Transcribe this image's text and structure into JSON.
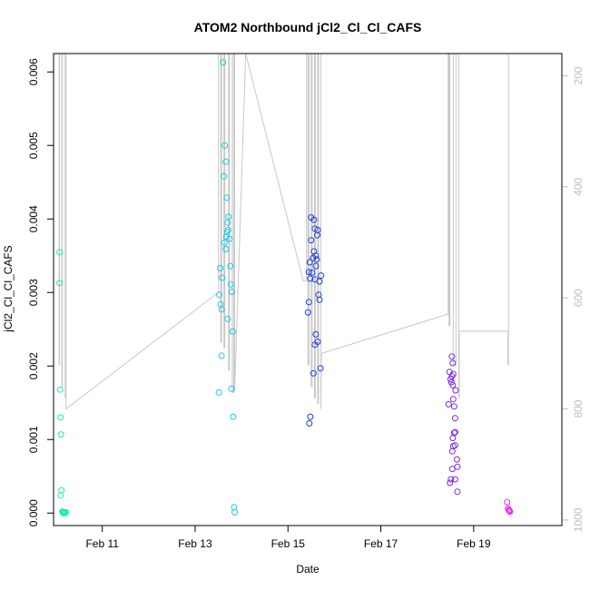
{
  "chart_data": {
    "type": "scatter",
    "title": "ATOM2 Northbound jCl2_Cl_Cl_CAFS",
    "xlabel": "Date",
    "ylabel": "jCl2_Cl_Cl_CAFS",
    "x_unit": "days in February",
    "xlim": [
      9.95,
      20.9
    ],
    "ylim": [
      -0.00017,
      0.00625
    ],
    "x_ticks": [
      {
        "value": 11,
        "label": "Feb 11"
      },
      {
        "value": 13,
        "label": "Feb 13"
      },
      {
        "value": 15,
        "label": "Feb 15"
      },
      {
        "value": 17,
        "label": "Feb 17"
      },
      {
        "value": 19,
        "label": "Feb 19"
      }
    ],
    "y_ticks": [
      {
        "value": 0.0,
        "label": "0.000"
      },
      {
        "value": 0.001,
        "label": "0.001"
      },
      {
        "value": 0.002,
        "label": "0.002"
      },
      {
        "value": 0.003,
        "label": "0.003"
      },
      {
        "value": 0.004,
        "label": "0.004"
      },
      {
        "value": 0.005,
        "label": "0.005"
      },
      {
        "value": 0.006,
        "label": "0.006"
      }
    ],
    "y2_ticks": [
      {
        "value": 200,
        "label": "200"
      },
      {
        "value": 400,
        "label": "400"
      },
      {
        "value": 600,
        "label": "600"
      },
      {
        "value": 800,
        "label": "800"
      },
      {
        "value": 1000,
        "label": "1000"
      }
    ],
    "y2lim": [
      1010,
      160
    ],
    "y2_color": "#bebebe",
    "line_color": "#c8c8c8",
    "grid": false,
    "legend": "none",
    "series": [
      {
        "color": "#1de9b6",
        "points": [
          [
            10.08,
            0.00355
          ],
          [
            10.08,
            0.00313
          ],
          [
            10.09,
            0.00168
          ],
          [
            10.1,
            0.0013
          ],
          [
            10.11,
            0.00107
          ],
          [
            10.1,
            0.00024
          ],
          [
            10.12,
            0.00031
          ],
          [
            10.14,
            2e-05
          ],
          [
            10.15,
            1e-05
          ],
          [
            10.16,
            0.0
          ],
          [
            10.18,
            1e-05
          ],
          [
            10.2,
            0.0
          ],
          [
            10.22,
            1e-05
          ],
          [
            10.17,
            0.0
          ]
        ]
      },
      {
        "color": "#1ec8e6",
        "points": [
          [
            13.6,
            0.00613
          ],
          [
            13.64,
            0.005
          ],
          [
            13.66,
            0.00478
          ],
          [
            13.62,
            0.00458
          ],
          [
            13.68,
            0.00429
          ],
          [
            13.72,
            0.00403
          ],
          [
            13.7,
            0.00395
          ],
          [
            13.71,
            0.00385
          ],
          [
            13.69,
            0.00382
          ],
          [
            13.67,
            0.00376
          ],
          [
            13.74,
            0.00373
          ],
          [
            13.63,
            0.00368
          ],
          [
            13.66,
            0.00359
          ],
          [
            13.54,
            0.00333
          ],
          [
            13.76,
            0.00336
          ],
          [
            13.58,
            0.0032
          ],
          [
            13.77,
            0.00311
          ],
          [
            13.79,
            0.00301
          ],
          [
            13.52,
            0.00297
          ],
          [
            13.55,
            0.00284
          ],
          [
            13.57,
            0.00277
          ],
          [
            13.7,
            0.00264
          ],
          [
            13.81,
            0.00247
          ],
          [
            13.57,
            0.00214
          ],
          [
            13.78,
            0.00169
          ],
          [
            13.51,
            0.00164
          ],
          [
            13.82,
            0.00131
          ],
          [
            13.84,
            8e-05
          ],
          [
            13.85,
            1e-05
          ]
        ]
      },
      {
        "color": "#1f3fe0",
        "points": [
          [
            15.5,
            0.00402
          ],
          [
            15.56,
            0.00399
          ],
          [
            15.58,
            0.00387
          ],
          [
            15.64,
            0.00385
          ],
          [
            15.63,
            0.00378
          ],
          [
            15.5,
            0.00371
          ],
          [
            15.56,
            0.00356
          ],
          [
            15.6,
            0.0035
          ],
          [
            15.54,
            0.00347
          ],
          [
            15.62,
            0.00345
          ],
          [
            15.47,
            0.00341
          ],
          [
            15.6,
            0.00336
          ],
          [
            15.45,
            0.00328
          ],
          [
            15.52,
            0.00327
          ],
          [
            15.71,
            0.00323
          ],
          [
            15.48,
            0.00319
          ],
          [
            15.58,
            0.00318
          ],
          [
            15.68,
            0.00315
          ],
          [
            15.66,
            0.00297
          ],
          [
            15.68,
            0.0029
          ],
          [
            15.45,
            0.00287
          ],
          [
            15.43,
            0.00273
          ],
          [
            15.6,
            0.00243
          ],
          [
            15.64,
            0.00233
          ],
          [
            15.58,
            0.00229
          ],
          [
            15.7,
            0.00197
          ],
          [
            15.55,
            0.0019
          ],
          [
            15.48,
            0.00131
          ],
          [
            15.46,
            0.00122
          ]
        ]
      },
      {
        "color": "#7b2be0",
        "points": [
          [
            18.53,
            0.00213
          ],
          [
            18.55,
            0.00204
          ],
          [
            18.48,
            0.00192
          ],
          [
            18.56,
            0.00189
          ],
          [
            18.53,
            0.00186
          ],
          [
            18.5,
            0.00182
          ],
          [
            18.52,
            0.00178
          ],
          [
            18.55,
            0.00174
          ],
          [
            18.61,
            0.00167
          ],
          [
            18.56,
            0.00155
          ],
          [
            18.46,
            0.00148
          ],
          [
            18.58,
            0.00145
          ],
          [
            18.6,
            0.00129
          ],
          [
            18.6,
            0.0011
          ],
          [
            18.58,
            0.00109
          ],
          [
            18.55,
            0.00102
          ],
          [
            18.6,
            0.00092
          ],
          [
            18.56,
            0.00091
          ],
          [
            18.54,
            0.00084
          ],
          [
            18.64,
            0.00073
          ],
          [
            18.65,
            0.00063
          ],
          [
            18.54,
            0.0006
          ],
          [
            18.51,
            0.00046
          ],
          [
            18.6,
            0.00046
          ],
          [
            18.49,
            0.00041
          ],
          [
            18.65,
            0.00029
          ]
        ]
      },
      {
        "color": "#ee22ee",
        "points": [
          [
            19.72,
            0.00015
          ],
          [
            19.74,
            6e-05
          ],
          [
            19.76,
            4e-05
          ],
          [
            19.77,
            3e-05
          ],
          [
            19.78,
            2e-05
          ]
        ]
      }
    ],
    "pressure_line": [
      [
        10.07,
        160
      ],
      [
        10.07,
        720
      ],
      [
        10.08,
        720
      ],
      [
        10.08,
        160
      ],
      [
        10.13,
        160
      ],
      [
        10.13,
        760
      ],
      [
        10.14,
        760
      ],
      [
        10.14,
        160
      ],
      [
        10.2,
        160
      ],
      [
        10.2,
        780
      ],
      [
        10.21,
        780
      ],
      [
        10.21,
        160
      ],
      [
        10.22,
        160
      ],
      [
        10.22,
        800
      ],
      [
        13.5,
        590
      ],
      [
        13.5,
        160
      ],
      [
        13.55,
        160
      ],
      [
        13.55,
        680
      ],
      [
        13.57,
        680
      ],
      [
        13.57,
        160
      ],
      [
        13.62,
        160
      ],
      [
        13.62,
        690
      ],
      [
        13.64,
        690
      ],
      [
        13.64,
        160
      ],
      [
        13.72,
        160
      ],
      [
        13.72,
        730
      ],
      [
        13.74,
        730
      ],
      [
        13.74,
        160
      ],
      [
        13.8,
        160
      ],
      [
        13.8,
        770
      ],
      [
        13.83,
        770
      ],
      [
        13.83,
        160
      ],
      [
        13.85,
        160
      ],
      [
        13.85,
        770
      ],
      [
        14.09,
        160
      ],
      [
        15.33,
        570
      ],
      [
        15.4,
        570
      ],
      [
        15.4,
        160
      ],
      [
        15.43,
        160
      ],
      [
        15.43,
        720
      ],
      [
        15.45,
        720
      ],
      [
        15.45,
        160
      ],
      [
        15.5,
        160
      ],
      [
        15.5,
        760
      ],
      [
        15.52,
        760
      ],
      [
        15.52,
        160
      ],
      [
        15.57,
        160
      ],
      [
        15.57,
        780
      ],
      [
        15.59,
        780
      ],
      [
        15.59,
        160
      ],
      [
        15.64,
        160
      ],
      [
        15.64,
        790
      ],
      [
        15.66,
        790
      ],
      [
        15.66,
        160
      ],
      [
        15.71,
        160
      ],
      [
        15.71,
        800
      ],
      [
        15.72,
        700
      ],
      [
        18.42,
        630
      ],
      [
        18.45,
        630
      ],
      [
        18.45,
        160
      ],
      [
        18.47,
        160
      ],
      [
        18.47,
        650
      ],
      [
        18.49,
        650
      ],
      [
        18.49,
        160
      ],
      [
        18.56,
        160
      ],
      [
        18.56,
        720
      ],
      [
        18.62,
        720
      ],
      [
        18.62,
        160
      ],
      [
        18.68,
        160
      ],
      [
        18.68,
        780
      ],
      [
        18.69,
        780
      ],
      [
        18.69,
        660
      ],
      [
        19.74,
        660
      ],
      [
        19.74,
        720
      ],
      [
        19.75,
        720
      ],
      [
        19.75,
        160
      ]
    ]
  }
}
